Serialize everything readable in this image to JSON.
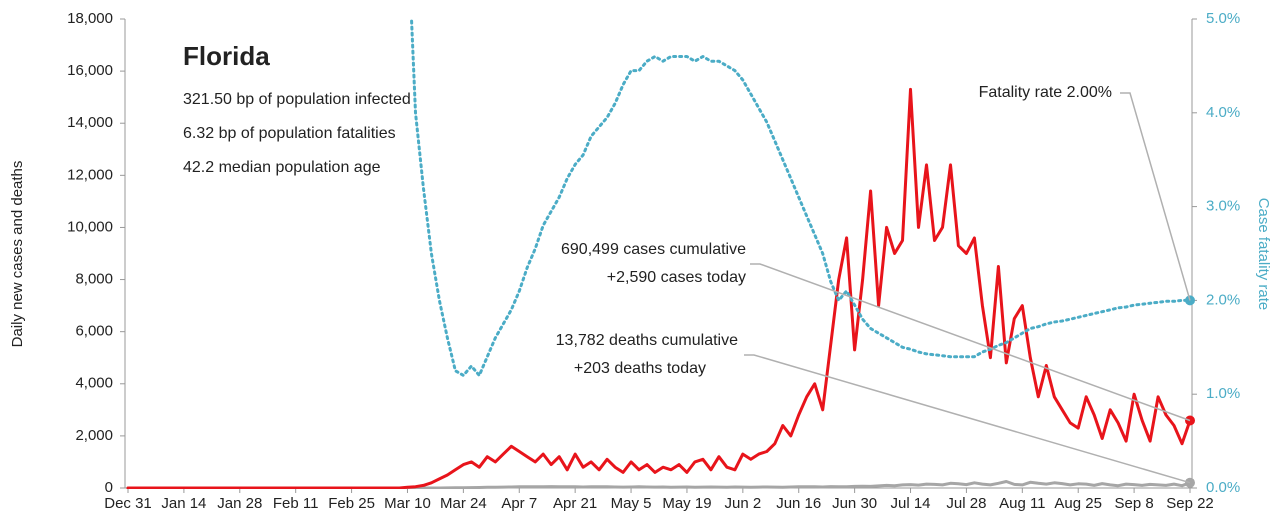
{
  "chart_data": {
    "type": "line",
    "title": "Florida",
    "annotations": [
      "321.50 bp of population infected",
      "6.32 bp of population fatalities",
      "42.2 median population age",
      "Fatality rate 2.00%",
      "690,499 cases cumulative",
      "+2,590 cases today",
      "13,782 deaths cumulative",
      "+203 deaths today"
    ],
    "ylabel": "Daily new cases and deaths",
    "y2label": "Case fatality rate",
    "x": [
      "Dec 31",
      "Jan 2",
      "Jan 4",
      "Jan 6",
      "Jan 8",
      "Jan 10",
      "Jan 12",
      "Jan 14",
      "Jan 16",
      "Jan 18",
      "Jan 20",
      "Jan 22",
      "Jan 24",
      "Jan 26",
      "Jan 28",
      "Jan 30",
      "Feb 1",
      "Feb 3",
      "Feb 5",
      "Feb 7",
      "Feb 9",
      "Feb 11",
      "Feb 13",
      "Feb 15",
      "Feb 17",
      "Feb 19",
      "Feb 21",
      "Feb 23",
      "Feb 25",
      "Feb 27",
      "Feb 29",
      "Mar 2",
      "Mar 4",
      "Mar 6",
      "Mar 8",
      "Mar 10",
      "Mar 12",
      "Mar 14",
      "Mar 16",
      "Mar 18",
      "Mar 20",
      "Mar 22",
      "Mar 24",
      "Mar 26",
      "Mar 28",
      "Mar 30",
      "Apr 1",
      "Apr 3",
      "Apr 5",
      "Apr 7",
      "Apr 9",
      "Apr 11",
      "Apr 13",
      "Apr 15",
      "Apr 17",
      "Apr 19",
      "Apr 21",
      "Apr 23",
      "Apr 25",
      "Apr 27",
      "Apr 29",
      "May 1",
      "May 3",
      "May 5",
      "May 7",
      "May 9",
      "May 11",
      "May 13",
      "May 15",
      "May 17",
      "May 19",
      "May 21",
      "May 23",
      "May 25",
      "May 27",
      "May 29",
      "May 31",
      "Jun 2",
      "Jun 4",
      "Jun 6",
      "Jun 8",
      "Jun 10",
      "Jun 12",
      "Jun 14",
      "Jun 16",
      "Jun 18",
      "Jun 20",
      "Jun 22",
      "Jun 24",
      "Jun 26",
      "Jun 28",
      "Jun 30",
      "Jul 2",
      "Jul 4",
      "Jul 6",
      "Jul 8",
      "Jul 10",
      "Jul 12",
      "Jul 14",
      "Jul 16",
      "Jul 18",
      "Jul 20",
      "Jul 22",
      "Jul 24",
      "Jul 26",
      "Jul 28",
      "Jul 30",
      "Aug 1",
      "Aug 3",
      "Aug 5",
      "Aug 7",
      "Aug 9",
      "Aug 11",
      "Aug 13",
      "Aug 15",
      "Aug 17",
      "Aug 19",
      "Aug 21",
      "Aug 23",
      "Aug 25",
      "Aug 27",
      "Aug 29",
      "Aug 31",
      "Sep 2",
      "Sep 4",
      "Sep 6",
      "Sep 8",
      "Sep 10",
      "Sep 12",
      "Sep 14",
      "Sep 16",
      "Sep 18",
      "Sep 20",
      "Sep 22"
    ],
    "xticks": [
      "Dec 31",
      "Jan 14",
      "Jan 28",
      "Feb 11",
      "Feb 25",
      "Mar 10",
      "Mar 24",
      "Apr 7",
      "Apr 21",
      "May 5",
      "May 19",
      "Jun 2",
      "Jun 16",
      "Jun 30",
      "Jul 14",
      "Jul 28",
      "Aug 11",
      "Aug 25",
      "Sep 8",
      "Sep 22"
    ],
    "ylim": [
      0,
      18000
    ],
    "yticks": [
      0,
      {
        "value": 2000,
        "label": "2,000"
      },
      {
        "value": 4000,
        "label": "4,000"
      },
      {
        "value": 6000,
        "label": "6,000"
      },
      {
        "value": 8000,
        "label": "8,000"
      },
      {
        "value": 10000,
        "label": "10,000"
      },
      {
        "value": 12000,
        "label": "12,000"
      },
      {
        "value": 14000,
        "label": "14,000"
      },
      {
        "value": 16000,
        "label": "16,000"
      },
      {
        "value": 18000,
        "label": "18,000"
      }
    ],
    "y2lim": [
      0,
      5
    ],
    "y2ticks": [
      {
        "value": 0,
        "label": "0.0%"
      },
      {
        "value": 1,
        "label": "1.0%"
      },
      {
        "value": 2,
        "label": "2.0%"
      },
      {
        "value": 3,
        "label": "3.0%"
      },
      {
        "value": 4,
        "label": "4.0%"
      },
      {
        "value": 5,
        "label": "5.0%"
      }
    ],
    "series": [
      {
        "color": "#e8141b",
        "values": [
          0,
          0,
          0,
          0,
          0,
          0,
          0,
          0,
          0,
          0,
          0,
          0,
          0,
          0,
          0,
          0,
          0,
          0,
          0,
          0,
          0,
          0,
          0,
          0,
          0,
          0,
          0,
          0,
          0,
          0,
          0,
          0,
          0,
          0,
          0,
          30,
          50,
          100,
          200,
          350,
          500,
          700,
          900,
          1000,
          800,
          1200,
          1000,
          1300,
          1600,
          1400,
          1200,
          1000,
          1300,
          900,
          1200,
          700,
          1300,
          800,
          1000,
          700,
          1100,
          800,
          600,
          1000,
          700,
          900,
          600,
          800,
          700,
          900,
          600,
          1000,
          1100,
          700,
          1200,
          800,
          700,
          1300,
          1100,
          1300,
          1400,
          1700,
          2400,
          2000,
          2800,
          3500,
          4000,
          3000,
          5500,
          8000,
          9600,
          5300,
          8000,
          11400,
          7000,
          10000,
          9000,
          9500,
          15300,
          10000,
          12400,
          9500,
          10000,
          12400,
          9300,
          9000,
          9600,
          7000,
          5000,
          8500,
          4800,
          6500,
          7000,
          5000,
          3500,
          4700,
          3500,
          3000,
          2500,
          2300,
          3500,
          2800,
          1900,
          3000,
          2500,
          1800,
          3600,
          2600,
          1800,
          3500,
          2800,
          2400,
          1700,
          2590
        ]
      },
      {
        "color": "#a6a6a6",
        "values": [
          0,
          0,
          0,
          0,
          0,
          0,
          0,
          0,
          0,
          0,
          0,
          0,
          0,
          0,
          0,
          0,
          0,
          0,
          0,
          0,
          0,
          0,
          0,
          0,
          0,
          0,
          0,
          0,
          0,
          0,
          0,
          0,
          0,
          0,
          0,
          0,
          0,
          0,
          0,
          0,
          5,
          8,
          12,
          15,
          20,
          25,
          30,
          35,
          40,
          45,
          50,
          45,
          50,
          55,
          50,
          45,
          50,
          40,
          45,
          50,
          45,
          40,
          35,
          40,
          45,
          40,
          35,
          40,
          30,
          35,
          40,
          30,
          35,
          40,
          35,
          30,
          40,
          35,
          30,
          35,
          40,
          35,
          30,
          40,
          45,
          50,
          45,
          40,
          55,
          50,
          45,
          60,
          70,
          60,
          80,
          100,
          90,
          120,
          130,
          110,
          150,
          140,
          120,
          180,
          160,
          130,
          200,
          150,
          120,
          180,
          250,
          140,
          120,
          220,
          180,
          150,
          200,
          170,
          120,
          160,
          150,
          100,
          170,
          120,
          90,
          150,
          130,
          100,
          140,
          120,
          100,
          150,
          90,
          203
        ]
      },
      {
        "color": "#4bacc6",
        "axis": "y2",
        "values": [
          null,
          null,
          null,
          null,
          null,
          null,
          null,
          null,
          null,
          null,
          null,
          null,
          null,
          null,
          null,
          null,
          null,
          null,
          null,
          null,
          null,
          null,
          null,
          null,
          null,
          null,
          null,
          null,
          null,
          null,
          null,
          null,
          null,
          null,
          null,
          6,
          4.0,
          3.2,
          2.5,
          2.0,
          1.6,
          1.25,
          1.2,
          1.3,
          1.2,
          1.4,
          1.6,
          1.75,
          1.9,
          2.1,
          2.35,
          2.55,
          2.8,
          2.95,
          3.1,
          3.3,
          3.45,
          3.55,
          3.75,
          3.85,
          3.95,
          4.1,
          4.3,
          4.45,
          4.45,
          4.55,
          4.6,
          4.55,
          4.6,
          4.6,
          4.6,
          4.55,
          4.6,
          4.55,
          4.55,
          4.5,
          4.45,
          4.35,
          4.2,
          4.05,
          3.9,
          3.7,
          3.5,
          3.3,
          3.1,
          2.9,
          2.7,
          2.5,
          2.2,
          2.0,
          2.1,
          1.95,
          1.8,
          1.7,
          1.65,
          1.6,
          1.55,
          1.5,
          1.48,
          1.45,
          1.43,
          1.42,
          1.41,
          1.4,
          1.4,
          1.4,
          1.4,
          1.45,
          1.48,
          1.52,
          1.55,
          1.6,
          1.65,
          1.7,
          1.72,
          1.75,
          1.77,
          1.78,
          1.8,
          1.82,
          1.84,
          1.86,
          1.88,
          1.9,
          1.92,
          1.93,
          1.95,
          1.96,
          1.97,
          1.98,
          1.99,
          1.99,
          2.0,
          2.0
        ]
      }
    ]
  }
}
